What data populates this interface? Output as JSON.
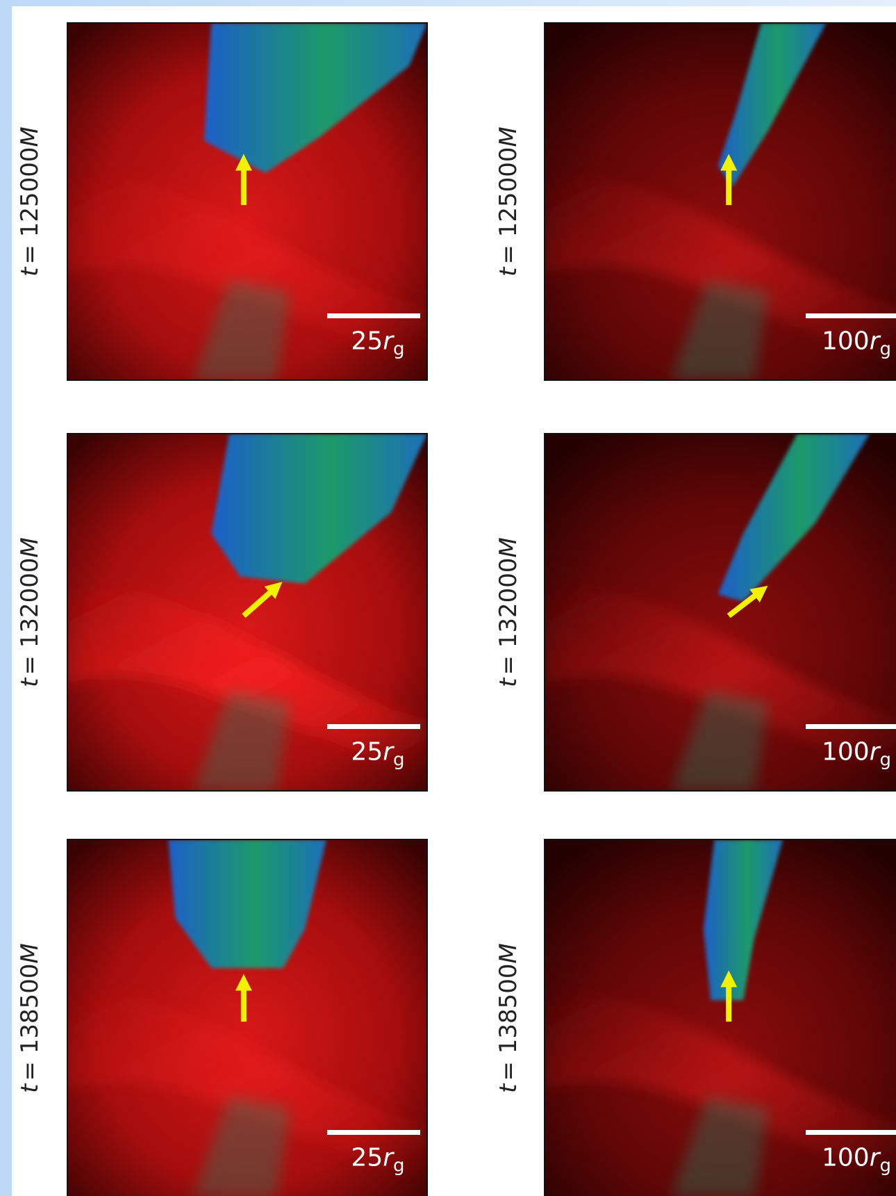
{
  "panels": [
    {
      "time": {
        "variable": "t",
        "value": "= 125000",
        "unit": "M"
      },
      "scale_bar": {
        "number": "25",
        "symbol": "r",
        "subscript": "g"
      }
    },
    {
      "time": {
        "variable": "t",
        "value": "= 125000",
        "unit": "M"
      },
      "scale_bar": {
        "number": "100",
        "symbol": "r",
        "subscript": "g"
      }
    },
    {
      "time": {
        "variable": "t",
        "value": "= 132000",
        "unit": "M"
      },
      "scale_bar": {
        "number": "25",
        "symbol": "r",
        "subscript": "g"
      }
    },
    {
      "time": {
        "variable": "t",
        "value": "= 132000",
        "unit": "M"
      },
      "scale_bar": {
        "number": "100",
        "symbol": "r",
        "subscript": "g"
      }
    },
    {
      "time": {
        "variable": "t",
        "value": "= 138500",
        "unit": "M"
      },
      "scale_bar": {
        "number": "25",
        "symbol": "r",
        "subscript": "g"
      }
    },
    {
      "time": {
        "variable": "t",
        "value": "= 138500",
        "unit": "M"
      },
      "scale_bar": {
        "number": "100",
        "symbol": "r",
        "subscript": "g"
      }
    }
  ]
}
